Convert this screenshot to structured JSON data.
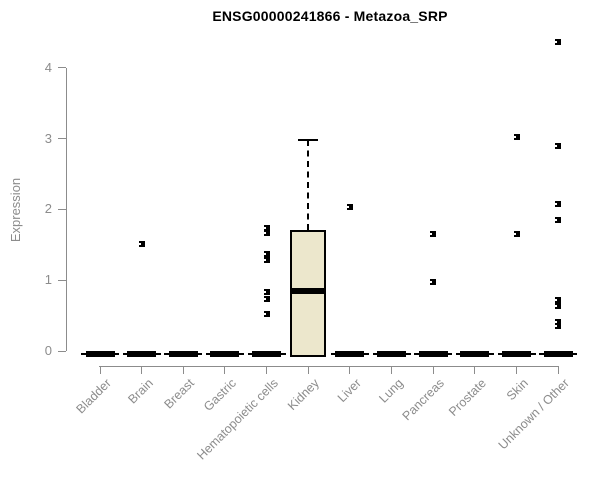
{
  "chart_data": {
    "type": "boxplot",
    "title": "ENSG00000241866 - Metazoa_SRP",
    "xlabel": "",
    "ylabel": "Expression",
    "ylim": [
      0,
      4
    ],
    "yticks": [
      0,
      1,
      2,
      3,
      4
    ],
    "grid": "off",
    "legend": "none",
    "categories": [
      "Bladder",
      "Brain",
      "Breast",
      "Gastric",
      "Hematopoietic cells",
      "Kidney",
      "Liver",
      "Lung",
      "Pancreas",
      "Prostate",
      "Skin",
      "Unknown / Other"
    ],
    "boxes": [
      {
        "category": "Bladder",
        "q1": 0,
        "median": 0,
        "q3": 0,
        "whisker_low": 0,
        "whisker_high": 0,
        "outliers": []
      },
      {
        "category": "Brain",
        "q1": 0,
        "median": 0,
        "q3": 0,
        "whisker_low": 0,
        "whisker_high": 0,
        "outliers": [
          1.51
        ]
      },
      {
        "category": "Breast",
        "q1": 0,
        "median": 0,
        "q3": 0,
        "whisker_low": 0,
        "whisker_high": 0,
        "outliers": []
      },
      {
        "category": "Gastric",
        "q1": 0,
        "median": 0,
        "q3": 0,
        "whisker_low": 0,
        "whisker_high": 0,
        "outliers": []
      },
      {
        "category": "Hematopoietic cells",
        "q1": 0,
        "median": 0,
        "q3": 0,
        "whisker_low": 0,
        "whisker_high": 0,
        "outliers": [
          1.73,
          1.66,
          1.37,
          1.29,
          0.84,
          0.73,
          0.52
        ]
      },
      {
        "category": "Kidney",
        "q1": 0,
        "median": 0.85,
        "q3": 1.71,
        "whisker_low": 0,
        "whisker_high": 2.98,
        "outliers": []
      },
      {
        "category": "Liver",
        "q1": 0,
        "median": 0,
        "q3": 0,
        "whisker_low": 0,
        "whisker_high": 0,
        "outliers": [
          2.03
        ]
      },
      {
        "category": "Lung",
        "q1": 0,
        "median": 0,
        "q3": 0,
        "whisker_low": 0,
        "whisker_high": 0,
        "outliers": []
      },
      {
        "category": "Pancreas",
        "q1": 0,
        "median": 0,
        "q3": 0,
        "whisker_low": 0,
        "whisker_high": 0,
        "outliers": [
          1.65,
          0.97
        ]
      },
      {
        "category": "Prostate",
        "q1": 0,
        "median": 0,
        "q3": 0,
        "whisker_low": 0,
        "whisker_high": 0,
        "outliers": []
      },
      {
        "category": "Skin",
        "q1": 0,
        "median": 0,
        "q3": 0,
        "whisker_low": 0,
        "whisker_high": 0,
        "outliers": [
          3.02,
          1.65
        ]
      },
      {
        "category": "Unknown / Other",
        "q1": 0,
        "median": 0,
        "q3": 0,
        "whisker_low": 0,
        "whisker_high": 0,
        "outliers": [
          4.36,
          2.89,
          2.07,
          1.85,
          0.72,
          0.63,
          0.41,
          0.35
        ]
      }
    ],
    "colors": {
      "box_fill": "#ece7cc",
      "box_line": "#000000",
      "axis": "#8c8c8c",
      "title_text": "#000000"
    }
  }
}
